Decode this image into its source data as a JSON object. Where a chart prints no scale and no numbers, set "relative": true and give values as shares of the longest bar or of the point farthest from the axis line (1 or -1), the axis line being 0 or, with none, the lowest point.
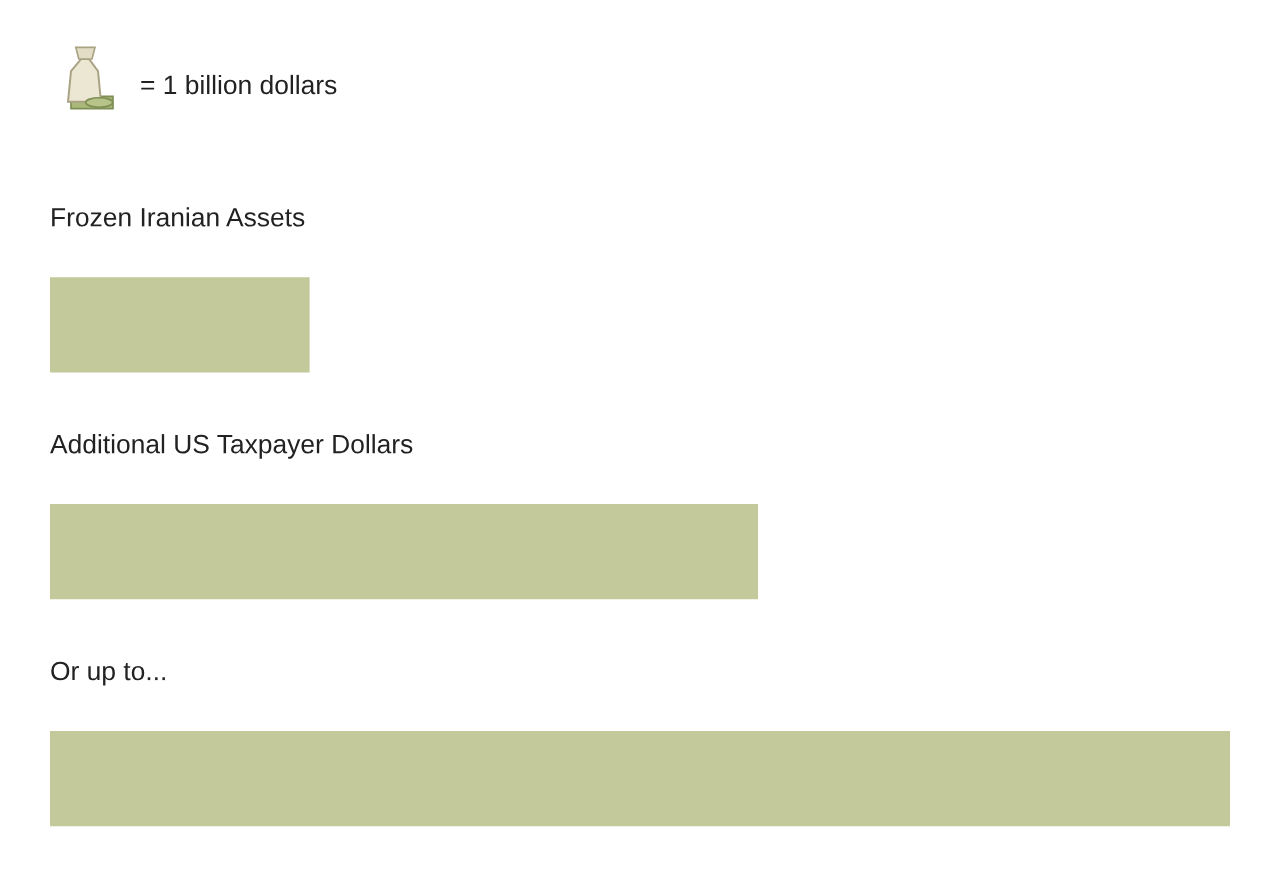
{
  "chart_data": {
    "type": "bar",
    "orientation": "horizontal",
    "relative": true,
    "categories": [
      "Frozen Iranian Assets",
      "Additional US Taxpayer Dollars",
      "Or up to..."
    ],
    "values": [
      0.22,
      0.6,
      1
    ],
    "color": "#c3c99a",
    "annotations": [
      "= 1 billion dollars"
    ]
  }
}
